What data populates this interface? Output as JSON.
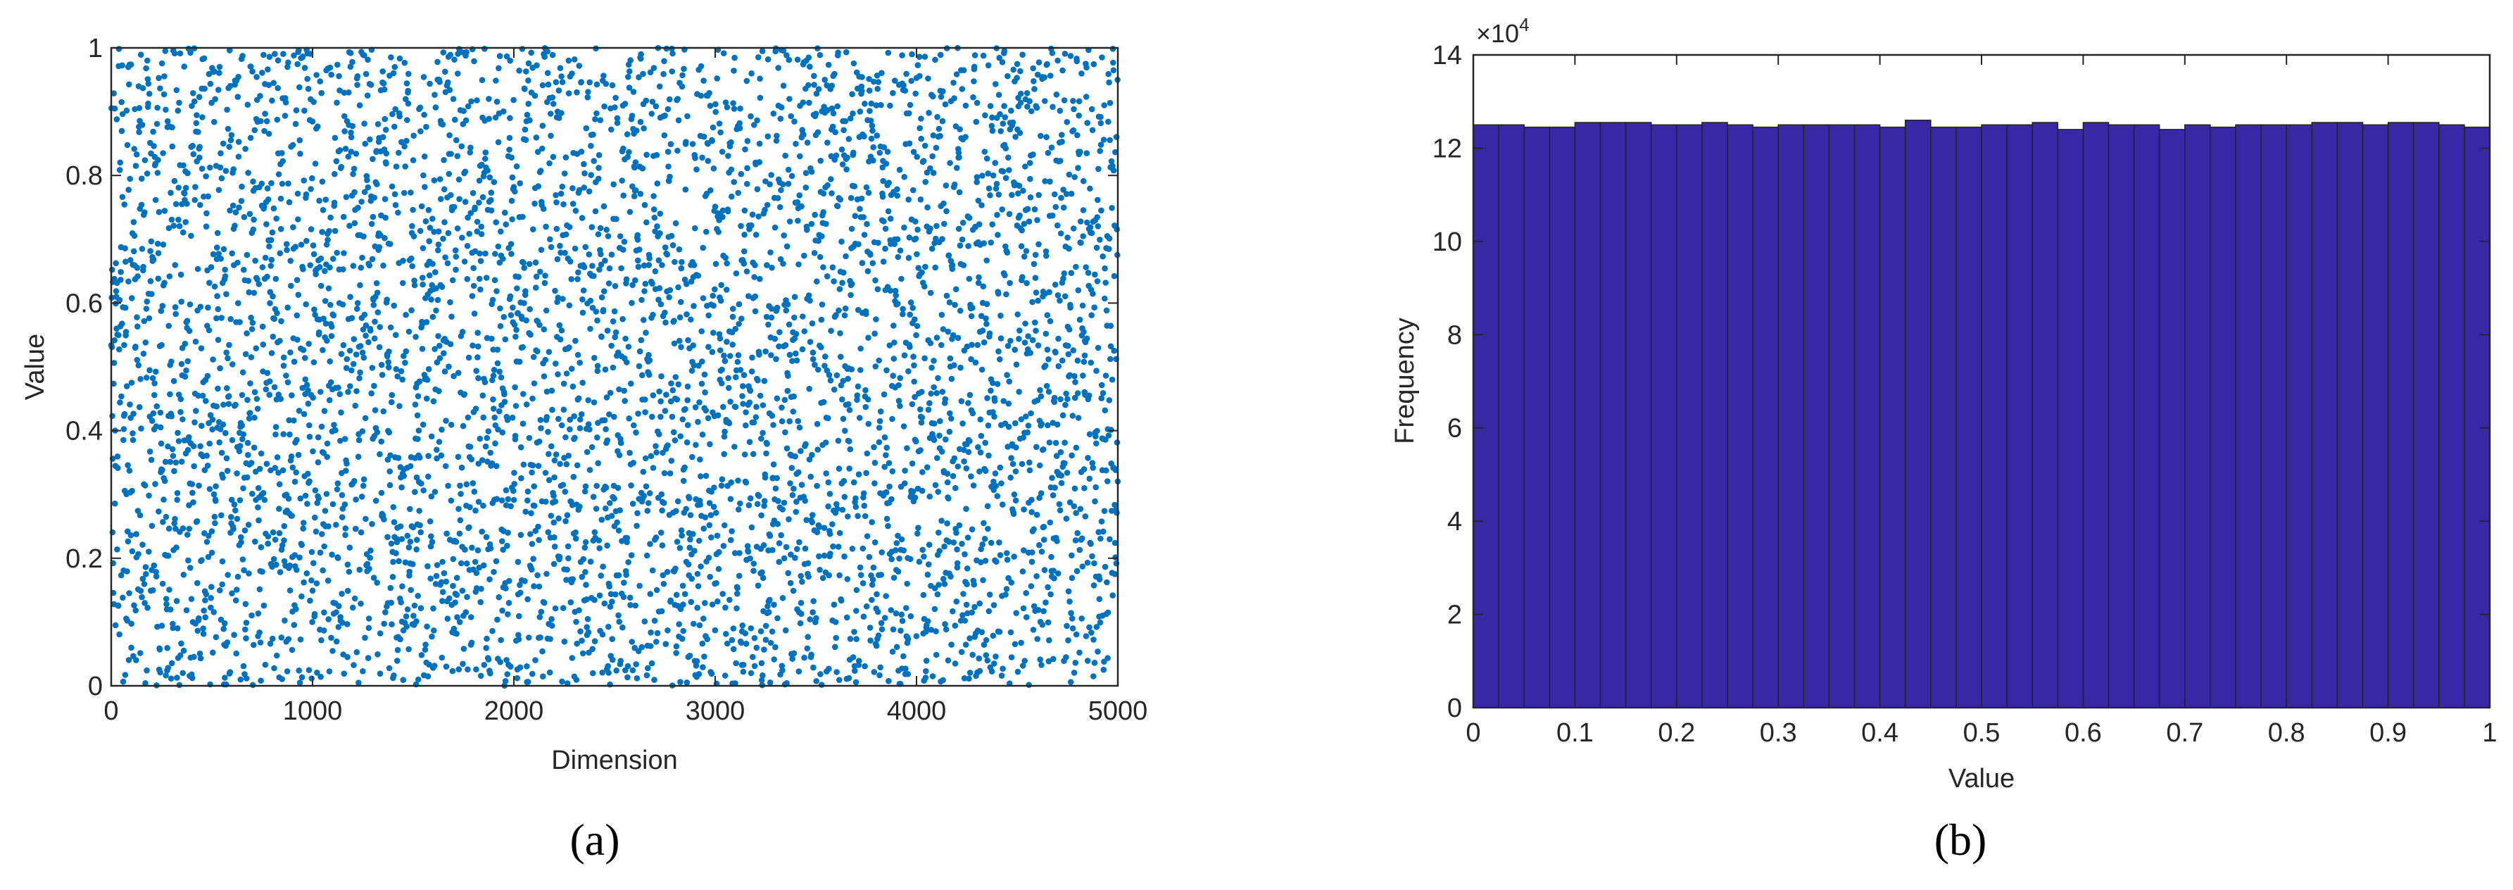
{
  "chart_data": [
    {
      "type": "scatter",
      "panel_label": "(a)",
      "xlabel": "Dimension",
      "ylabel": "Value",
      "xlim": [
        0,
        5000
      ],
      "ylim": [
        0,
        1
      ],
      "xticks": [
        "0",
        "1000",
        "2000",
        "3000",
        "4000",
        "5000"
      ],
      "yticks": [
        "0",
        "0.2",
        "0.4",
        "0.6",
        "0.8",
        "1"
      ],
      "color": "#0072BD",
      "n_points": 5000,
      "distribution": "uniform on [0,1] per dimension index"
    },
    {
      "type": "bar",
      "panel_label": "(b)",
      "xlabel": "Value",
      "ylabel": "Frequency",
      "xlim": [
        0,
        1
      ],
      "ylim": [
        0,
        14
      ],
      "y_exponent": "×10",
      "y_exponent_power": "4",
      "xticks": [
        "0",
        "0.1",
        "0.2",
        "0.3",
        "0.4",
        "0.5",
        "0.6",
        "0.7",
        "0.8",
        "0.9",
        "1"
      ],
      "yticks": [
        "0",
        "2",
        "4",
        "6",
        "8",
        "10",
        "12",
        "14"
      ],
      "bar_color": "#3A27A6",
      "edge_color": "#222222",
      "bin_edges_start": 0,
      "bin_width": 0.025,
      "values": [
        12.5,
        12.5,
        12.45,
        12.45,
        12.55,
        12.55,
        12.55,
        12.5,
        12.5,
        12.55,
        12.5,
        12.45,
        12.5,
        12.5,
        12.5,
        12.5,
        12.45,
        12.6,
        12.45,
        12.45,
        12.5,
        12.5,
        12.55,
        12.4,
        12.55,
        12.5,
        12.5,
        12.4,
        12.5,
        12.45,
        12.5,
        12.5,
        12.5,
        12.55,
        12.55,
        12.5,
        12.55,
        12.55,
        12.5,
        12.45
      ]
    }
  ]
}
